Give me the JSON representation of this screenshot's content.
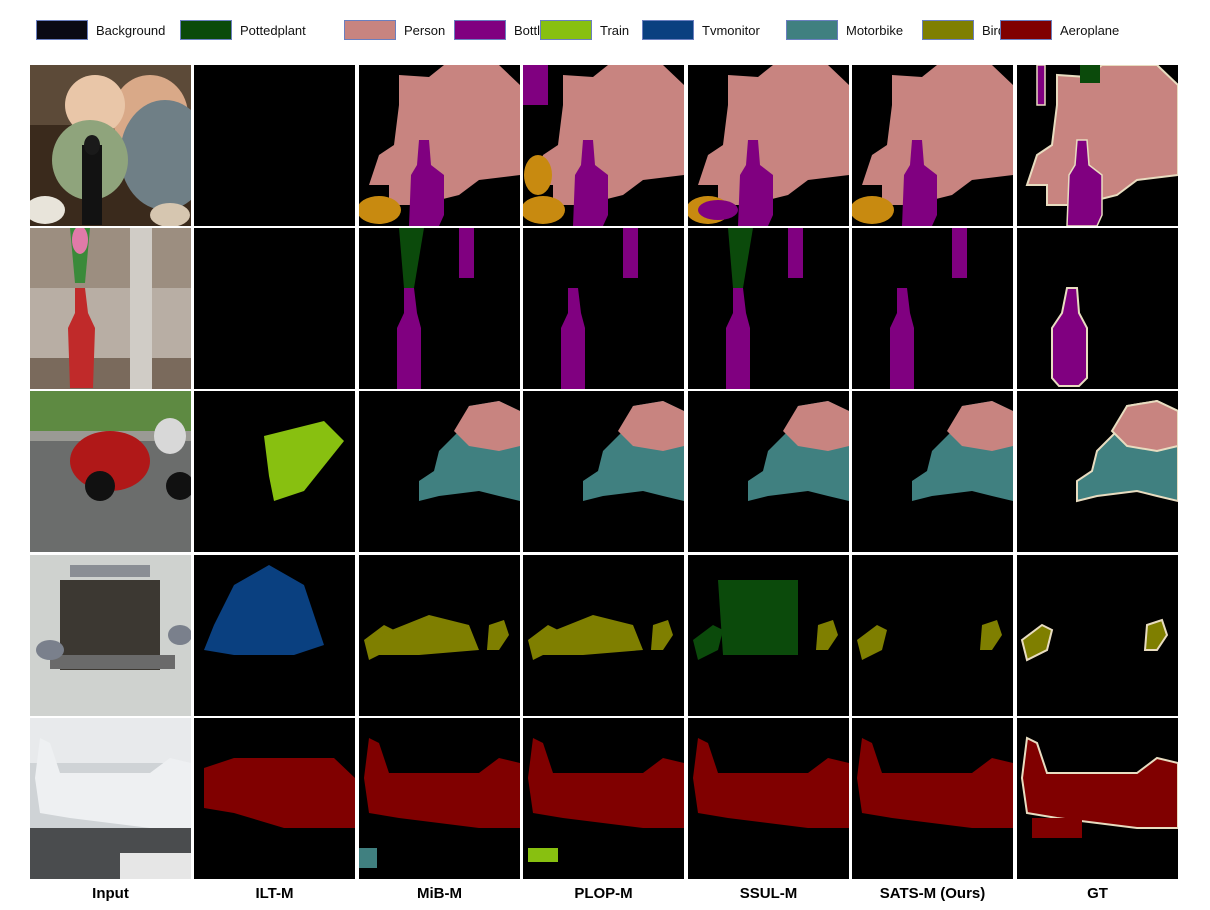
{
  "legend": [
    {
      "label": "Background",
      "color": "#0a0a14"
    },
    {
      "label": "Pottedplant",
      "color": "#0b4a0b"
    },
    {
      "label": "Person",
      "color": "#c88480"
    },
    {
      "label": "Bottle",
      "color": "#800080"
    },
    {
      "label": "Train",
      "color": "#88c010"
    },
    {
      "label": "Tvmonitor",
      "color": "#0a4080"
    },
    {
      "label": "Motorbike",
      "color": "#408080"
    },
    {
      "label": "Bird",
      "color": "#7f7f00"
    },
    {
      "label": "Aeroplane",
      "color": "#800000"
    }
  ],
  "columns": [
    "Input",
    "ILT-M",
    "MiB-M",
    "PLOP-M",
    "SSUL-M",
    "SATS-M (Ours)",
    "GT"
  ],
  "rows": [
    "baby-with-bottle",
    "bottle-with-flowers",
    "motorbike-racer",
    "birds-at-feeder",
    "aeroplane"
  ],
  "colors": {
    "person": "#c88480",
    "bottle": "#800080",
    "pottedplant": "#0b4a0b",
    "train": "#88c010",
    "tvmonitor": "#0a4080",
    "motorbike": "#408080",
    "bird": "#7f7f00",
    "aeroplane": "#800000",
    "orange_noise": "#c88a10",
    "outline": "#e8dcc0"
  }
}
